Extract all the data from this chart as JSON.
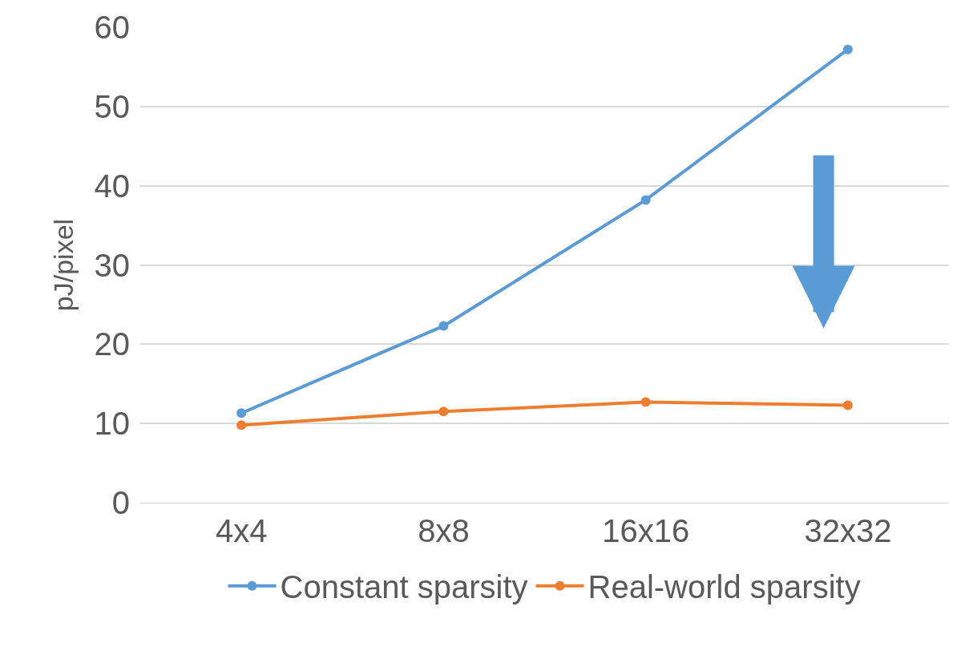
{
  "chart_data": {
    "type": "line",
    "ylabel": "pJ/pixel",
    "categories": [
      "4x4",
      "8x8",
      "16x16",
      "32x32"
    ],
    "series": [
      {
        "name": "Constant sparsity",
        "color": "#5b9bd5",
        "values": [
          11.3,
          22.3,
          38.2,
          57.2
        ]
      },
      {
        "name": "Real-world sparsity",
        "color": "#ed7d31",
        "values": [
          9.8,
          11.5,
          12.7,
          12.3
        ]
      }
    ],
    "ylim": [
      0,
      60
    ],
    "yticks": [
      0,
      10,
      20,
      30,
      40,
      50,
      60
    ],
    "grid": "y",
    "legend": "bottom",
    "marker": "circle",
    "line_style": "solid"
  }
}
